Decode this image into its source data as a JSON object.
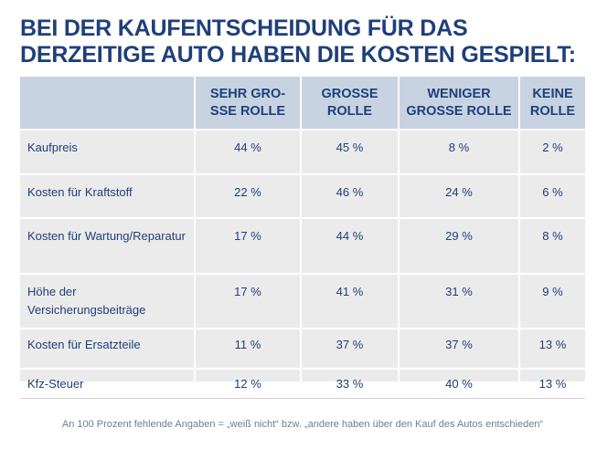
{
  "title": "BEI DER KAUFENTSCHEIDUNG FÜR DAS DERZEITIGE AUTO HABEN DIE KOSTEN GESPIELT:",
  "table": {
    "headers": [
      "",
      "SEHR GRO-SSE ROLLE",
      "GROSSE ROLLE",
      "WENIGER GROSSE ROLLE",
      "KEINE ROLLE"
    ],
    "rows": [
      [
        "Kaufpreis",
        "44 %",
        "45 %",
        "8 %",
        "2 %"
      ],
      [
        "Kosten für Kraftstoff",
        "22 %",
        "46 %",
        "24 %",
        "6 %"
      ],
      [
        "Kosten für Wartung/Reparatur",
        "17 %",
        "44 %",
        "29 %",
        "8 %"
      ],
      [
        "Höhe der Versicherungsbeiträge",
        "17 %",
        "41 %",
        "31 %",
        "9 %"
      ],
      [
        "Kosten für Ersatzteile",
        "11 %",
        "37 %",
        "37 %",
        "13 %"
      ],
      [
        "Kfz-Steuer",
        "12 %",
        "33 %",
        "40 %",
        "13 %"
      ]
    ]
  },
  "footnote": "An 100 Prozent fehlende Angaben = „weiß nicht“ bzw. „andere haben über den Kauf des Autos entschieden“",
  "colors": {
    "title": "#1f3f7a",
    "header_bg": "#c8d3e2",
    "body_bg": "#ebebeb",
    "footnote": "#6f7d92"
  }
}
